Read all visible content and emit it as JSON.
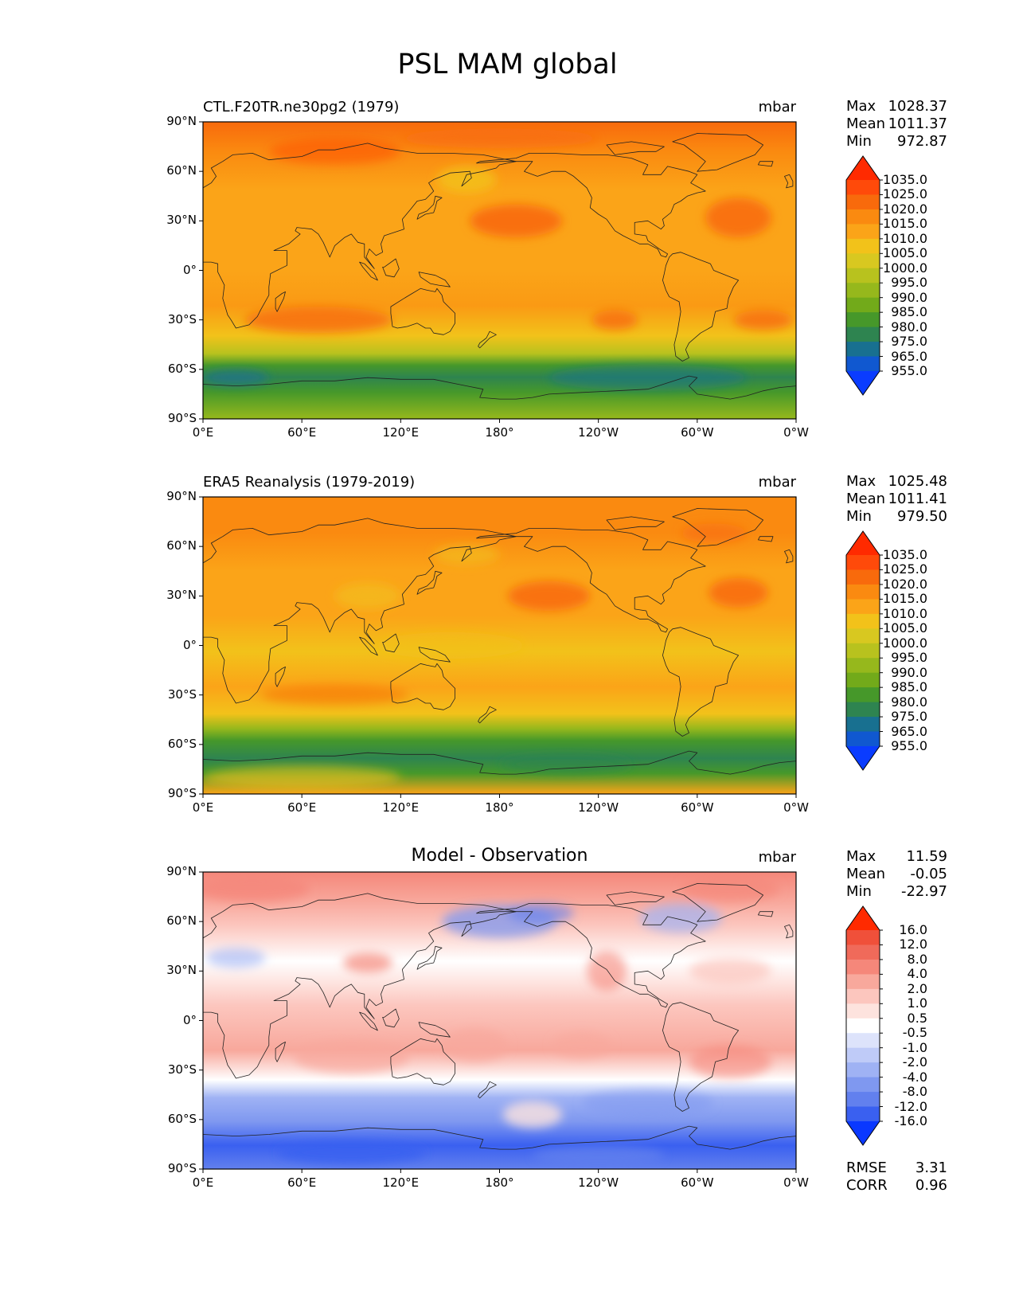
{
  "figure": {
    "title": "PSL MAM global"
  },
  "axes": {
    "lat_ticks": [
      "90°N",
      "60°N",
      "30°N",
      "0°",
      "30°S",
      "60°S",
      "90°S"
    ],
    "lon_ticks": [
      "0°E",
      "60°E",
      "120°E",
      "180°",
      "120°W",
      "60°W",
      "0°W"
    ]
  },
  "panels": [
    {
      "title_left": "CTL.F20TR.ne30pg2 (1979)",
      "title_center": "",
      "units": "mbar",
      "stats": [
        {
          "label": "Max",
          "value": "1028.37"
        },
        {
          "label": "Mean",
          "value": "1011.37"
        },
        {
          "label": "Min",
          "value": "972.87"
        }
      ],
      "colorbar_levels": [
        "1035.0",
        "1025.0",
        "1020.0",
        "1015.0",
        "1010.0",
        "1005.0",
        "1000.0",
        "995.0",
        "990.0",
        "985.0",
        "980.0",
        "975.0",
        "965.0",
        "955.0"
      ],
      "colorbar_colors": [
        "#ff2a00",
        "#ff4a0a",
        "#f86a0c",
        "#fa8a10",
        "#fba418",
        "#f2c21a",
        "#d8c820",
        "#b8c21e",
        "#96b81c",
        "#72aa1a",
        "#46982a",
        "#2e8450",
        "#187090",
        "#1058d0",
        "#0a3cff"
      ],
      "field_type": "model"
    },
    {
      "title_left": "ERA5 Reanalysis (1979-2019)",
      "title_center": "",
      "units": "mbar",
      "stats": [
        {
          "label": "Max",
          "value": "1025.48"
        },
        {
          "label": "Mean",
          "value": "1011.41"
        },
        {
          "label": "Min",
          "value": "979.50"
        }
      ],
      "colorbar_levels": [
        "1035.0",
        "1025.0",
        "1020.0",
        "1015.0",
        "1010.0",
        "1005.0",
        "1000.0",
        "995.0",
        "990.0",
        "985.0",
        "980.0",
        "975.0",
        "965.0",
        "955.0"
      ],
      "colorbar_colors": [
        "#ff2a00",
        "#ff4a0a",
        "#f86a0c",
        "#fa8a10",
        "#fba418",
        "#f2c21a",
        "#d8c820",
        "#b8c21e",
        "#96b81c",
        "#72aa1a",
        "#46982a",
        "#2e8450",
        "#187090",
        "#1058d0",
        "#0a3cff"
      ],
      "field_type": "obs"
    },
    {
      "title_left": "",
      "title_center": "Model - Observation",
      "units": "mbar",
      "stats": [
        {
          "label": "Max",
          "value": "11.59"
        },
        {
          "label": "Mean",
          "value": "-0.05"
        },
        {
          "label": "Min",
          "value": "-22.97"
        }
      ],
      "colorbar_levels": [
        "16.0",
        "12.0",
        "8.0",
        "4.0",
        "2.0",
        "1.0",
        "0.5",
        "-0.5",
        "-1.0",
        "-2.0",
        "-4.0",
        "-8.0",
        "-12.0",
        "-16.0"
      ],
      "colorbar_colors": [
        "#ff2a00",
        "#f0503a",
        "#f06a5a",
        "#f5877a",
        "#f8a89c",
        "#fcc6be",
        "#fde3de",
        "#ffffff",
        "#dde3fb",
        "#bfcbf8",
        "#9fb2f4",
        "#7f98f0",
        "#6280ee",
        "#3a60f0",
        "#0a38ff"
      ],
      "field_type": "diff",
      "metrics": [
        {
          "label": "RMSE",
          "value": "3.31"
        },
        {
          "label": "CORR",
          "value": "0.96"
        }
      ]
    }
  ]
}
